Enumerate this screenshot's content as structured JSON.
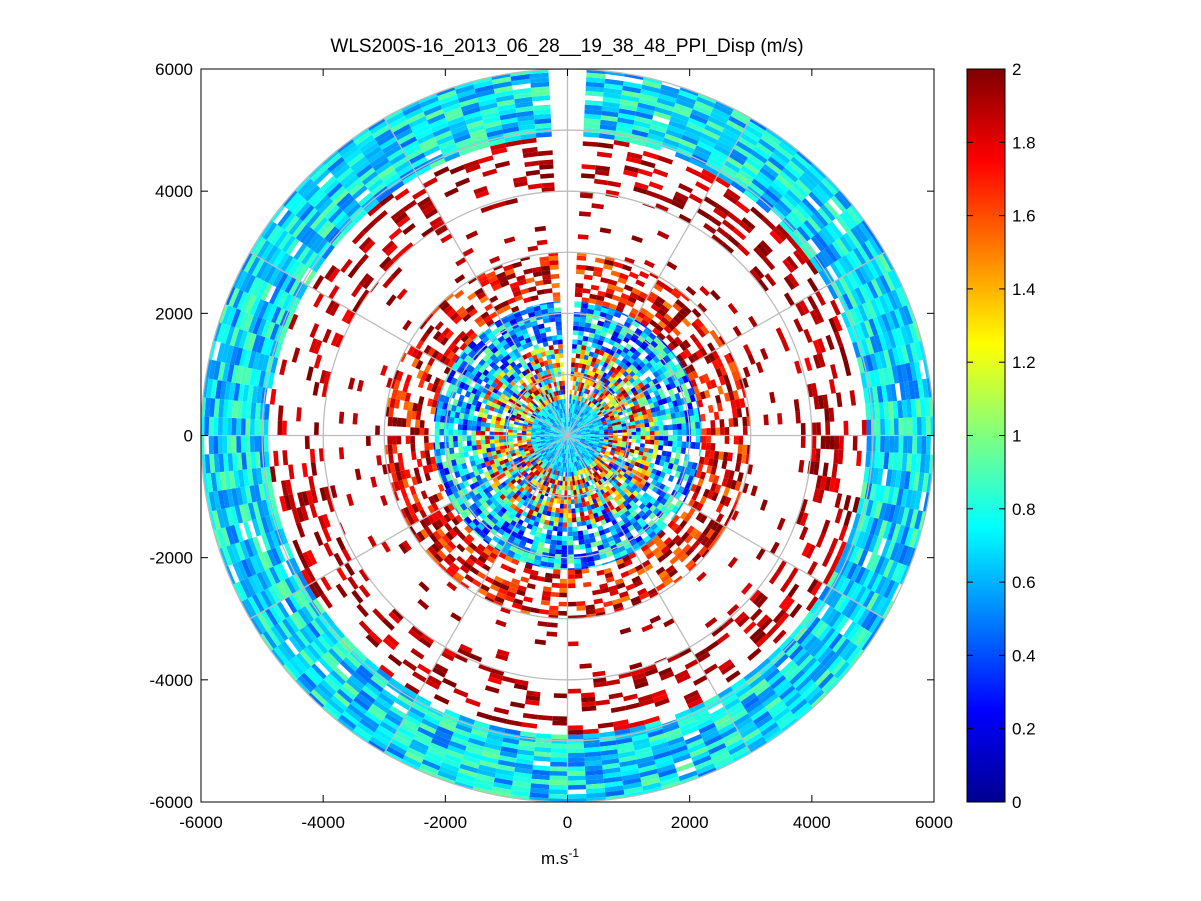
{
  "chart_data": {
    "type": "heatmap",
    "subtype": "polar-ppi",
    "title": "WLS200S-16_2013_06_28__19_38_48_PPI_Disp (m/s)",
    "xlabel": "m.s",
    "xlabel_superscript": "-1",
    "ylabel": "",
    "xlim": [
      -6000,
      6000
    ],
    "ylim": [
      -6000,
      6000
    ],
    "xticks": [
      "-6000",
      "-4000",
      "-2000",
      "0",
      "2000",
      "4000",
      "6000"
    ],
    "yticks": [
      "6000",
      "4000",
      "2000",
      "0",
      "-2000",
      "-4000",
      "-6000"
    ],
    "polar_rings": [
      1000,
      2000,
      3000,
      4000,
      5000,
      6000
    ],
    "polar_spokes_deg": [
      0,
      30,
      60,
      90,
      120,
      150,
      180,
      210,
      240,
      270,
      300,
      330
    ],
    "max_range": 6000,
    "missing_sector_deg": [
      -2,
      3
    ],
    "colorbar": {
      "colormap": "jet",
      "range": [
        0,
        2
      ],
      "ticks": [
        "0",
        "0.2",
        "0.4",
        "0.6",
        "0.8",
        "1",
        "1.2",
        "1.4",
        "1.6",
        "1.8",
        "2"
      ]
    },
    "range_bands": [
      {
        "r_min": 0,
        "r_max": 600,
        "value": 0.65,
        "spread": 0.2,
        "fill": 1.0
      },
      {
        "r_min": 600,
        "r_max": 1500,
        "value": 1.1,
        "spread": 0.9,
        "fill": 0.9
      },
      {
        "r_min": 1500,
        "r_max": 2200,
        "value": 0.6,
        "spread": 0.4,
        "fill": 0.85
      },
      {
        "r_min": 2200,
        "r_max": 3000,
        "value": 1.8,
        "spread": 0.3,
        "fill": 0.55
      },
      {
        "r_min": 3000,
        "r_max": 4000,
        "value": 1.9,
        "spread": 0.1,
        "fill": 0.06
      },
      {
        "r_min": 4000,
        "r_max": 4900,
        "value": 1.9,
        "spread": 0.15,
        "fill": 0.3
      },
      {
        "r_min": 4900,
        "r_max": 6000,
        "value": 0.7,
        "spread": 0.25,
        "fill": 0.97
      }
    ]
  }
}
